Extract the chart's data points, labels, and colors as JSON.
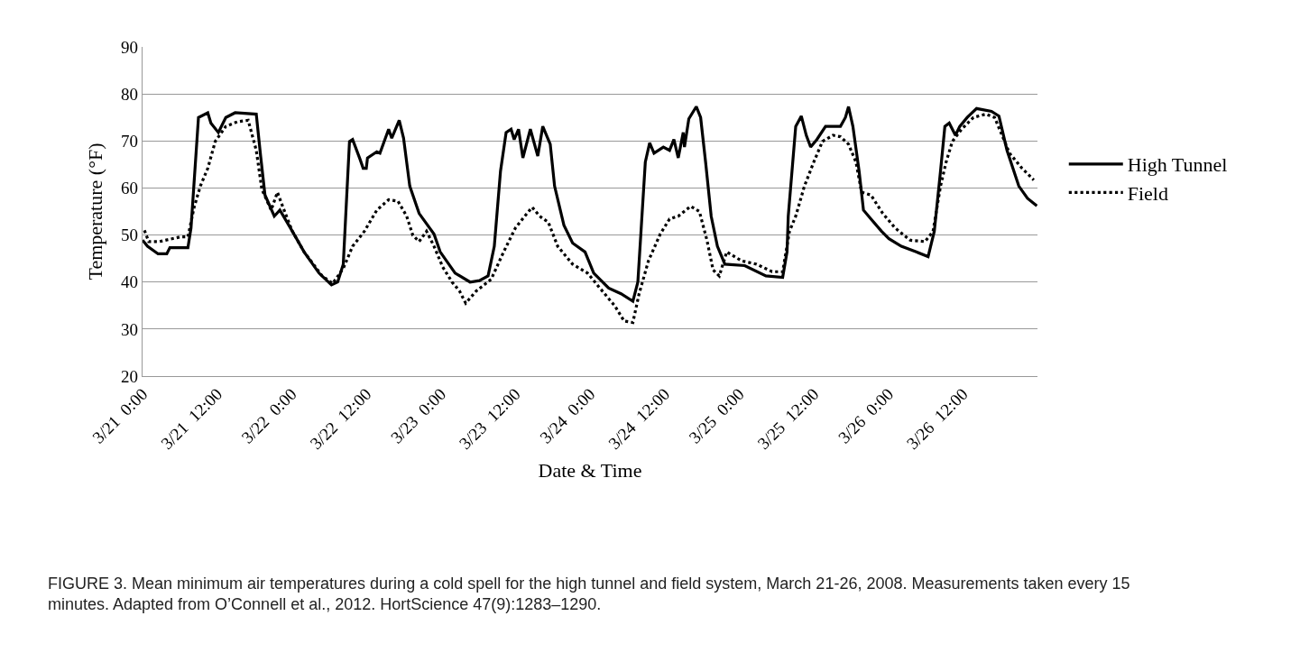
{
  "chart_data": {
    "type": "line",
    "xlabel": "Date & Time",
    "ylabel": "Temperature (°F)",
    "xlim": [
      "--03-21T00:00",
      "--03-27T00:00"
    ],
    "xticks": [
      {
        "value": "--03-21T00:00",
        "label": "3/21  0:00"
      },
      {
        "value": "--03-21T12:00",
        "label": "3/21  12:00"
      },
      {
        "value": "--03-22T00:00",
        "label": "3/22  0:00"
      },
      {
        "value": "--03-22T12:00",
        "label": "3/22  12:00"
      },
      {
        "value": "--03-23T00:00",
        "label": "3/23  0:00"
      },
      {
        "value": "--03-23T12:00",
        "label": "3/23  12:00"
      },
      {
        "value": "--03-24T00:00",
        "label": "3/24  0:00"
      },
      {
        "value": "--03-24T12:00",
        "label": "3/24  12:00"
      },
      {
        "value": "--03-25T00:00",
        "label": "3/25  0:00"
      },
      {
        "value": "--03-25T12:00",
        "label": "3/25  12:00"
      },
      {
        "value": "--03-26T00:00",
        "label": "3/26  0:00"
      },
      {
        "value": "--03-26T12:00",
        "label": "3/26  12:00"
      }
    ],
    "ylim": [
      20,
      90
    ],
    "yticks": [
      20,
      30,
      40,
      50,
      60,
      70,
      80,
      90
    ],
    "grid": "y",
    "legend": "right",
    "marker": "none",
    "series": [
      {
        "name": "High Tunnel",
        "color": "#000000",
        "line_style": "solid",
        "x": [
          "--03-21T00:00",
          "--03-21T00:48",
          "--03-21T02:30",
          "--03-21T03:54",
          "--03-21T04:24",
          "--03-21T07:18",
          "--03-21T07:48",
          "--03-21T09:00",
          "--03-21T10:30",
          "--03-21T11:00",
          "--03-21T12:12",
          "--03-21T13:24",
          "--03-21T14:54",
          "--03-21T18:18",
          "--03-21T19:00",
          "--03-21T19:42",
          "--03-21T21:12",
          "--03-21T22:06",
          "--03-22T00:06",
          "--03-22T02:00",
          "--03-22T04:24",
          "--03-22T06:24",
          "--03-22T07:24",
          "--03-22T08:18",
          "--03-22T09:18",
          "--03-22T09:48",
          "--03-22T11:00",
          "--03-22T11:30",
          "--03-22T12:00",
          "--03-22T12:12",
          "--03-22T13:42",
          "--03-22T14:12",
          "--03-22T15:36",
          "--03-22T16:06",
          "--03-22T17:18",
          "--03-22T18:00",
          "--03-22T19:00",
          "--03-22T20:30",
          "--03-22T22:54",
          "--03-22T23:54",
          "--03-23T02:18",
          "--03-23T04:42",
          "--03-23T06:12",
          "--03-23T07:36",
          "--03-23T08:36",
          "--03-23T09:36",
          "--03-23T10:30",
          "--03-23T11:18",
          "--03-23T11:48",
          "--03-23T12:30",
          "--03-23T13:12",
          "--03-23T14:24",
          "--03-23T15:36",
          "--03-23T16:24",
          "--03-23T17:36",
          "--03-23T18:18",
          "--03-23T19:48",
          "--03-23T21:12",
          "--03-23T23:12",
          "--03-24T00:36",
          "--03-24T03:00",
          "--03-24T05:00",
          "--03-24T06:54",
          "--03-24T07:42",
          "--03-24T08:54",
          "--03-24T09:36",
          "--03-24T10:18",
          "--03-24T11:48",
          "--03-24T12:48",
          "--03-24T13:30",
          "--03-24T14:12",
          "--03-24T15:00",
          "--03-24T15:12",
          "--03-24T15:54",
          "--03-24T17:06",
          "--03-24T17:48",
          "--03-24T18:36",
          "--03-24T19:30",
          "--03-24T20:30",
          "--03-24T21:42",
          "--03-25T00:54",
          "--03-25T04:18",
          "--03-25T07:00",
          "--03-25T07:42",
          "--03-25T07:54",
          "--03-25T09:06",
          "--03-25T10:00",
          "--03-25T10:48",
          "--03-25T11:30",
          "--03-25T12:30",
          "--03-25T13:54",
          "--03-25T16:18",
          "--03-25T17:06",
          "--03-25T17:36",
          "--03-25T18:18",
          "--03-25T19:18",
          "--03-25T20:00",
          "--03-25T21:12",
          "--03-25T22:54",
          "--03-26T00:06",
          "--03-26T02:06",
          "--03-26T04:30",
          "--03-26T06:24",
          "--03-26T07:24",
          "--03-26T08:24",
          "--03-26T09:06",
          "--03-26T09:48",
          "--03-26T10:48",
          "--03-26T11:30",
          "--03-26T12:42",
          "--03-26T14:12",
          "--03-26T16:36",
          "--03-26T17:48",
          "--03-26T19:06",
          "--03-26T21:00",
          "--03-26T22:24",
          "--03-26T23:54"
        ],
        "values": [
          48.9,
          47.6,
          46.0,
          46.0,
          47.3,
          47.3,
          51.5,
          75.0,
          76.0,
          73.8,
          71.8,
          75.0,
          76.0,
          75.7,
          66.8,
          58.5,
          54.0,
          55.3,
          50.8,
          46.4,
          41.9,
          39.4,
          40.0,
          43.8,
          69.9,
          70.3,
          66.1,
          64.2,
          64.2,
          66.4,
          67.7,
          67.4,
          72.5,
          70.6,
          74.4,
          70.6,
          60.4,
          54.6,
          50.2,
          46.4,
          41.9,
          40.0,
          40.3,
          41.3,
          47.6,
          63.6,
          71.8,
          72.5,
          70.3,
          72.5,
          66.4,
          72.5,
          66.8,
          73.1,
          69.3,
          60.4,
          52.1,
          48.3,
          46.4,
          41.9,
          38.7,
          37.5,
          35.9,
          40.0,
          65.5,
          69.6,
          67.4,
          68.7,
          68.0,
          70.3,
          66.4,
          71.8,
          68.7,
          74.7,
          77.3,
          75.0,
          65.5,
          54.0,
          47.6,
          43.8,
          43.5,
          41.3,
          41.0,
          46.4,
          54.0,
          73.1,
          75.3,
          71.2,
          68.7,
          70.3,
          73.1,
          73.1,
          75.0,
          77.3,
          73.1,
          63.6,
          55.3,
          53.4,
          50.8,
          49.2,
          47.6,
          46.4,
          45.4,
          50.8,
          63.6,
          73.1,
          73.8,
          71.2,
          73.1,
          75.0,
          76.9,
          76.3,
          75.3,
          68.0,
          60.4,
          57.8,
          56.2
        ]
      },
      {
        "name": "Field",
        "color": "#000000",
        "line_style": "dotted",
        "x": [
          "--03-21T00:18",
          "--03-21T01:00",
          "--03-21T02:42",
          "--03-21T06:06",
          "--03-21T07:18",
          "--03-21T08:18",
          "--03-21T09:18",
          "--03-21T10:30",
          "--03-21T11:42",
          "--03-21T13:24",
          "--03-21T15:18",
          "--03-21T17:00",
          "--03-21T18:18",
          "--03-21T19:12",
          "--03-21T20:42",
          "--03-21T21:42",
          "--03-21T22:24",
          "--03-22T00:06",
          "--03-22T02:00",
          "--03-22T04:54",
          "--03-22T06:36",
          "--03-22T08:18",
          "--03-22T09:48",
          "--03-22T11:42",
          "--03-22T13:42",
          "--03-22T15:36",
          "--03-22T17:06",
          "--03-22T18:30",
          "--03-22T19:30",
          "--03-22T20:30",
          "--03-22T21:42",
          "--03-22T22:54",
          "--03-23T00:18",
          "--03-23T01:48",
          "--03-23T03:00",
          "--03-23T04:00",
          "--03-23T05:42",
          "--03-23T08:06",
          "--03-23T10:06",
          "--03-23T12:00",
          "--03-23T13:30",
          "--03-23T14:42",
          "--03-23T15:54",
          "--03-23T17:18",
          "--03-23T18:48",
          "--03-23T21:12",
          "--03-23T23:36",
          "--03-24T01:36",
          "--03-24T04:00",
          "--03-24T05:30",
          "--03-24T06:54",
          "--03-24T07:54",
          "--03-24T09:24",
          "--03-24T11:18",
          "--03-24T12:48",
          "--03-24T14:12",
          "--03-24T16:12",
          "--03-24T17:36",
          "--03-24T18:48",
          "--03-24T19:48",
          "--03-24T20:48",
          "--03-24T22:00",
          "--03-25T00:24",
          "--03-25T02:48",
          "--03-25T05:18",
          "--03-25T07:00",
          "--03-25T08:06",
          "--03-25T09:06",
          "--03-25T10:30",
          "--03-25T12:00",
          "--03-25T13:24",
          "--03-25T15:06",
          "--03-25T16:18",
          "--03-25T17:36",
          "--03-25T18:48",
          "--03-25T19:42",
          "--03-25T21:12",
          "--03-25T23:06",
          "--03-26T01:06",
          "--03-26T03:30",
          "--03-26T05:54",
          "--03-26T07:12",
          "--03-26T08:24",
          "--03-26T09:18",
          "--03-26T10:18",
          "--03-26T11:48",
          "--03-26T13:42",
          "--03-26T15:42",
          "--03-26T17:06",
          "--03-26T18:18",
          "--03-26T19:30",
          "--03-26T21:30",
          "--03-26T23:24"
        ],
        "values": [
          51.0,
          48.6,
          48.6,
          49.6,
          49.6,
          55.9,
          60.4,
          64.2,
          69.9,
          73.1,
          74.1,
          74.4,
          68.0,
          59.7,
          55.3,
          59.1,
          56.6,
          50.8,
          46.4,
          41.3,
          39.7,
          42.9,
          47.6,
          50.8,
          55.3,
          57.5,
          57.2,
          54.0,
          49.9,
          48.6,
          50.8,
          47.6,
          43.2,
          40.0,
          38.1,
          35.5,
          38.1,
          40.6,
          46.4,
          51.5,
          54.0,
          55.9,
          54.0,
          52.7,
          47.6,
          43.8,
          41.9,
          38.7,
          34.9,
          31.7,
          31.4,
          37.5,
          44.5,
          50.2,
          53.4,
          54.0,
          56.1,
          55.0,
          49.0,
          42.6,
          41.3,
          46.4,
          44.5,
          43.8,
          42.2,
          42.2,
          50.8,
          54.0,
          60.4,
          65.5,
          69.9,
          71.2,
          70.9,
          69.3,
          65.5,
          59.1,
          58.5,
          54.6,
          51.5,
          48.9,
          48.6,
          50.8,
          60.4,
          65.5,
          69.9,
          72.5,
          75.0,
          75.7,
          75.0,
          71.2,
          67.4,
          64.2,
          61.7
        ]
      }
    ],
    "annotations": [
      "FIGURE 3. Mean minimum air temperatures during a cold spell for the high tunnel and field system, March 21-26, 2008. Measurements taken every 15 minutes. Adapted from O’Connell et al., 2012. HortScience 47(9):1283–1290."
    ]
  }
}
